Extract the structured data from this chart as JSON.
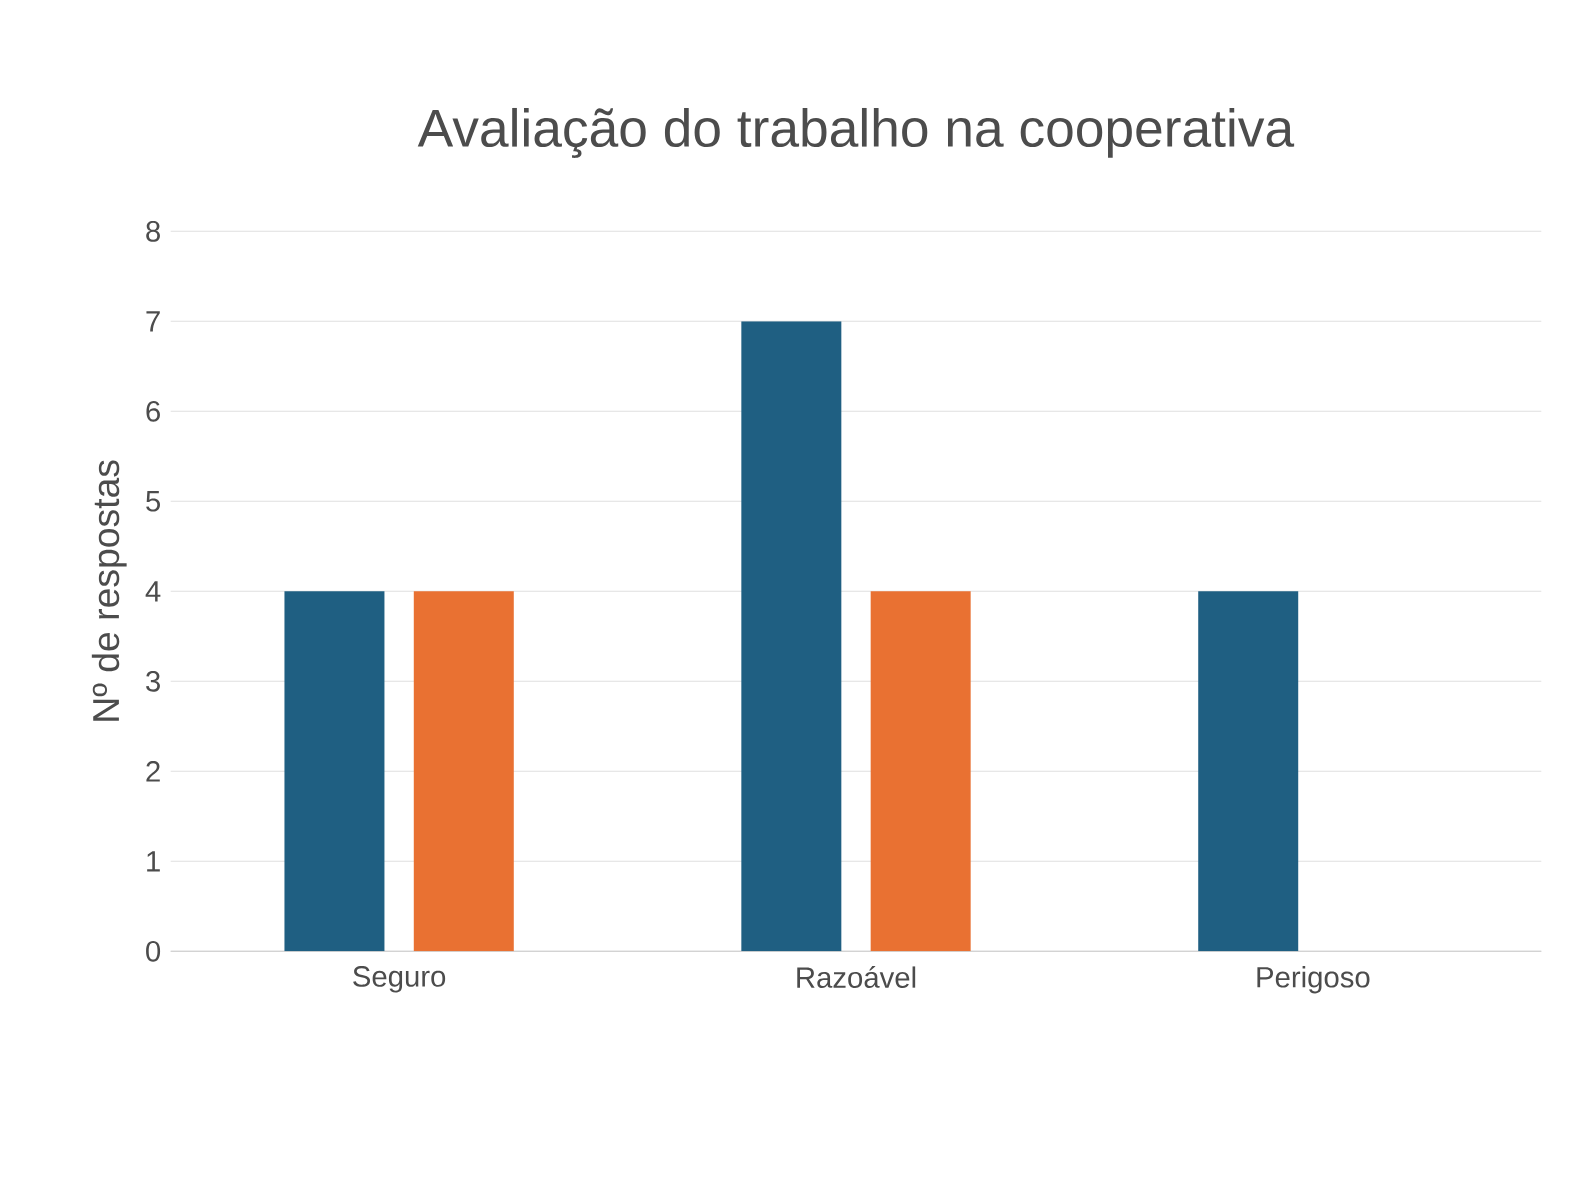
{
  "chart_data": {
    "type": "bar",
    "title": "Avaliação do trabalho na cooperativa",
    "ylabel": "Nº de respostas",
    "categories": [
      "Seguro",
      "Razoável",
      "Perigoso"
    ],
    "series": [
      {
        "color": "#1f5f82",
        "values": [
          4,
          7,
          4
        ]
      },
      {
        "color": "#e97132",
        "values": [
          4,
          4,
          0
        ]
      }
    ],
    "ylim": [
      0,
      8
    ],
    "yticks": [
      0,
      1,
      2,
      3,
      4,
      5,
      6,
      7,
      8
    ],
    "grid": "y"
  }
}
